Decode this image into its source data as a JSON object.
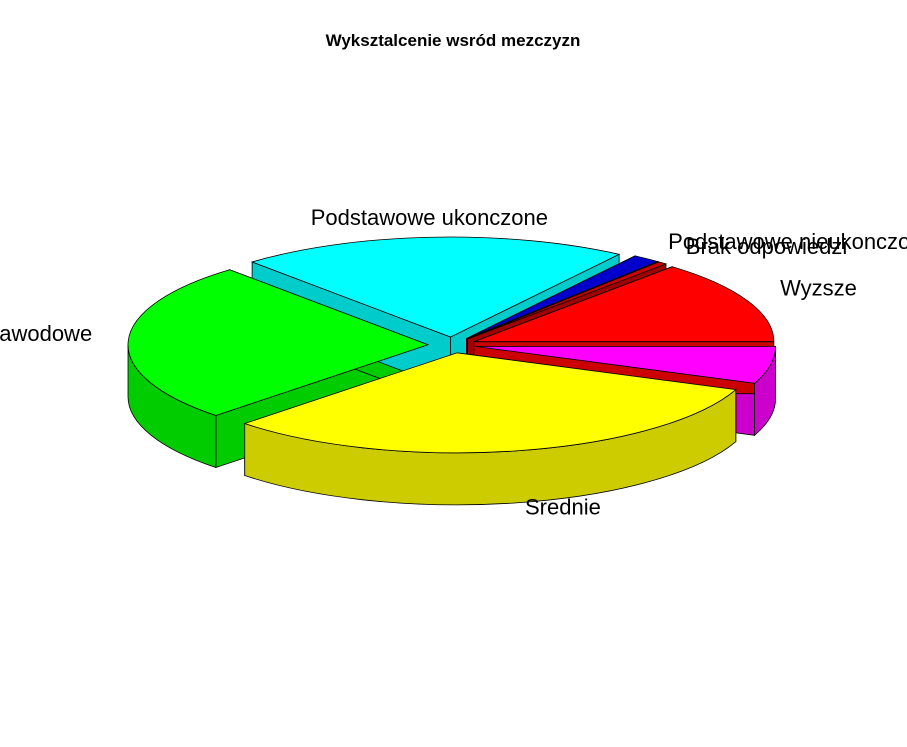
{
  "chart_data": {
    "type": "pie",
    "title": "Wyksztalcenie wsród mezczyzn",
    "three_d": true,
    "exploded": true,
    "slices": [
      {
        "label": "Wyzsze",
        "value": 13.5,
        "color": "#FF0000",
        "side_color": "#CC0000"
      },
      {
        "label": "Brak odpowiedzi",
        "value": 0.5,
        "color": "#CC0000",
        "side_color": "#A00000"
      },
      {
        "label": "Podstawowe nieukonczone",
        "value": 1.5,
        "color": "#0000CC",
        "side_color": "#0000A0"
      },
      {
        "label": "Podstawowe ukonczone",
        "value": 21,
        "color": "#00FFFF",
        "side_color": "#00CCCC"
      },
      {
        "label": "Zasadnicze zawodowe",
        "value": 26,
        "color": "#00FF00",
        "side_color": "#00CC00"
      },
      {
        "label": "Srednie",
        "value": 31.5,
        "color": "#FFFF00",
        "side_color": "#CCCC00"
      },
      {
        "label": "",
        "value": 6,
        "color": "#FF00FF",
        "side_color": "#CC00CC"
      }
    ]
  }
}
